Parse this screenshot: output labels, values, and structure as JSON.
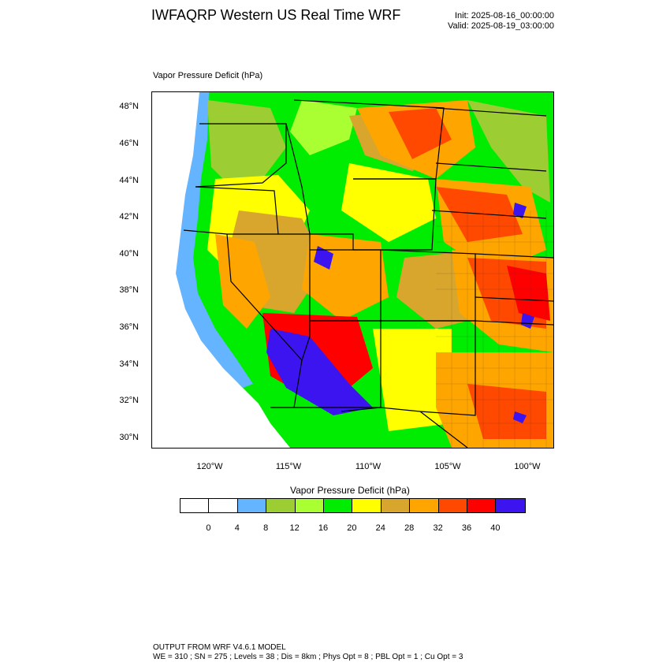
{
  "header": {
    "title": "IWFAQRP Western US Real Time WRF",
    "init": "Init: 2025-08-16_00:00:00",
    "valid": "Valid: 2025-08-19_03:00:00"
  },
  "map": {
    "field_label": "Vapor Pressure Deficit   (hPa)",
    "lat_labels": [
      "48°N",
      "46°N",
      "44°N",
      "42°N",
      "40°N",
      "38°N",
      "36°N",
      "34°N",
      "32°N",
      "30°N"
    ],
    "lon_labels": [
      "120°W",
      "115°W",
      "110°W",
      "105°W",
      "100°W"
    ],
    "ocean_color": "#ffffff",
    "border_color": "#000000"
  },
  "colorbar": {
    "title": "Vapor Pressure Deficit  (hPa)",
    "colors": [
      "#ffffff",
      "#ffffff",
      "#64b4ff",
      "#9ccd32",
      "#aaff32",
      "#00ec00",
      "#ffff00",
      "#d9a62d",
      "#ffa500",
      "#ff4800",
      "#ff0000",
      "#3c14f0"
    ],
    "labels": [
      "0",
      "4",
      "8",
      "12",
      "16",
      "20",
      "24",
      "28",
      "32",
      "36",
      "40"
    ]
  },
  "footer": {
    "line1": "OUTPUT FROM WRF V4.6.1 MODEL",
    "line2": "WE = 310 ; SN = 275 ; Levels = 38 ; Dis = 8km ; Phys Opt = 8 ; PBL Opt = 1 ; Cu Opt = 3"
  }
}
